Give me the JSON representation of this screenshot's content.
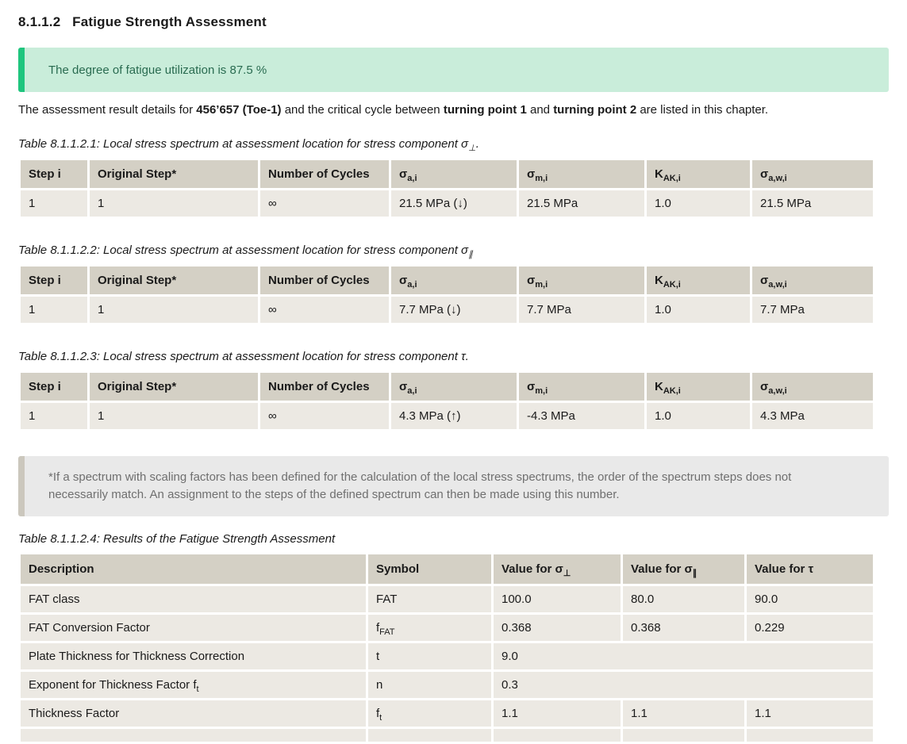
{
  "page": {
    "title": "8.1.1.2   Fatigue Strength Assessment"
  },
  "banner": {
    "text": "The degree of fatigue utilization is 87.5 %",
    "utilization_percent": "87.5"
  },
  "intro": "The assessment result details for **456’657 (Toe-1)** and the critical cycle between **turning point 1** and **turning point 2** are listed in this chapter.",
  "spectrum_tables": [
    {
      "caption": "Table 8.1.1.2.1: Local stress spectrum at assessment location for stress component σ_{⊥}.",
      "columns": [
        "Step i",
        "Original Step*",
        "Number of Cycles",
        "σ_{a,i}",
        "σ_{m,i}",
        "K_{AK,i}",
        "σ_{a,w,i}"
      ],
      "rows": [
        [
          "1",
          "1",
          "∞",
          "21.5 MPa (↓)",
          "21.5 MPa",
          "1.0",
          "21.5 MPa"
        ]
      ]
    },
    {
      "caption": "Table 8.1.1.2.2: Local stress spectrum at assessment location for stress component σ_{∥}",
      "columns": [
        "Step i",
        "Original Step*",
        "Number of Cycles",
        "σ_{a,i}",
        "σ_{m,i}",
        "K_{AK,i}",
        "σ_{a,w,i}"
      ],
      "rows": [
        [
          "1",
          "1",
          "∞",
          "7.7 MPa (↓)",
          "7.7 MPa",
          "1.0",
          "7.7 MPa"
        ]
      ]
    },
    {
      "caption": "Table 8.1.1.2.3: Local stress spectrum at assessment location for stress component τ.",
      "columns": [
        "Step i",
        "Original Step*",
        "Number of Cycles",
        "σ_{a,i}",
        "σ_{m,i}",
        "K_{AK,i}",
        "σ_{a,w,i}"
      ],
      "rows": [
        [
          "1",
          "1",
          "∞",
          "4.3 MPa (↑)",
          "-4.3 MPa",
          "1.0",
          "4.3 MPa"
        ]
      ]
    }
  ],
  "footnote": "*If a spectrum with scaling factors has been defined for the calculation of the local stress spectrums, the order of the spectrum steps does not necessarily match. An assignment to the steps of the defined spectrum can then be made using this number.",
  "results_table": {
    "caption": "Table 8.1.1.2.4: Results of the Fatigue Strength Assessment",
    "columns": [
      "Description",
      "Symbol",
      "Value for σ_{⊥}",
      "Value for σ_{∥}",
      "Value for τ"
    ],
    "rows": [
      {
        "description": "FAT class",
        "symbol": "FAT",
        "values": [
          "100.0",
          "80.0",
          "90.0"
        ]
      },
      {
        "description": "FAT Conversion Factor",
        "symbol": "f_{FAT}",
        "values": [
          "0.368",
          "0.368",
          "0.229"
        ]
      },
      {
        "description": "Plate Thickness for Thickness Correction",
        "symbol": "t",
        "values": [
          "9.0"
        ],
        "merged": true
      },
      {
        "description": "Exponent for Thickness Factor f_{t}",
        "symbol": "n",
        "values": [
          "0.3"
        ],
        "merged": true
      },
      {
        "description": "Thickness Factor",
        "symbol": "f_{t}",
        "values": [
          "1.1",
          "1.1",
          "1.1"
        ]
      },
      {
        "description": "",
        "symbol": "",
        "values": [
          "",
          "",
          ""
        ]
      }
    ]
  },
  "colors": {
    "banner_background": "#c9edda",
    "banner_accent": "#1fc57e",
    "banner_text": "#296b50",
    "table_header_background": "#d4d0c5",
    "table_row_background": "#ece9e3",
    "note_background": "#e9e9e9",
    "note_accent": "#cbc7bd",
    "note_text": "#6f6f6f"
  }
}
